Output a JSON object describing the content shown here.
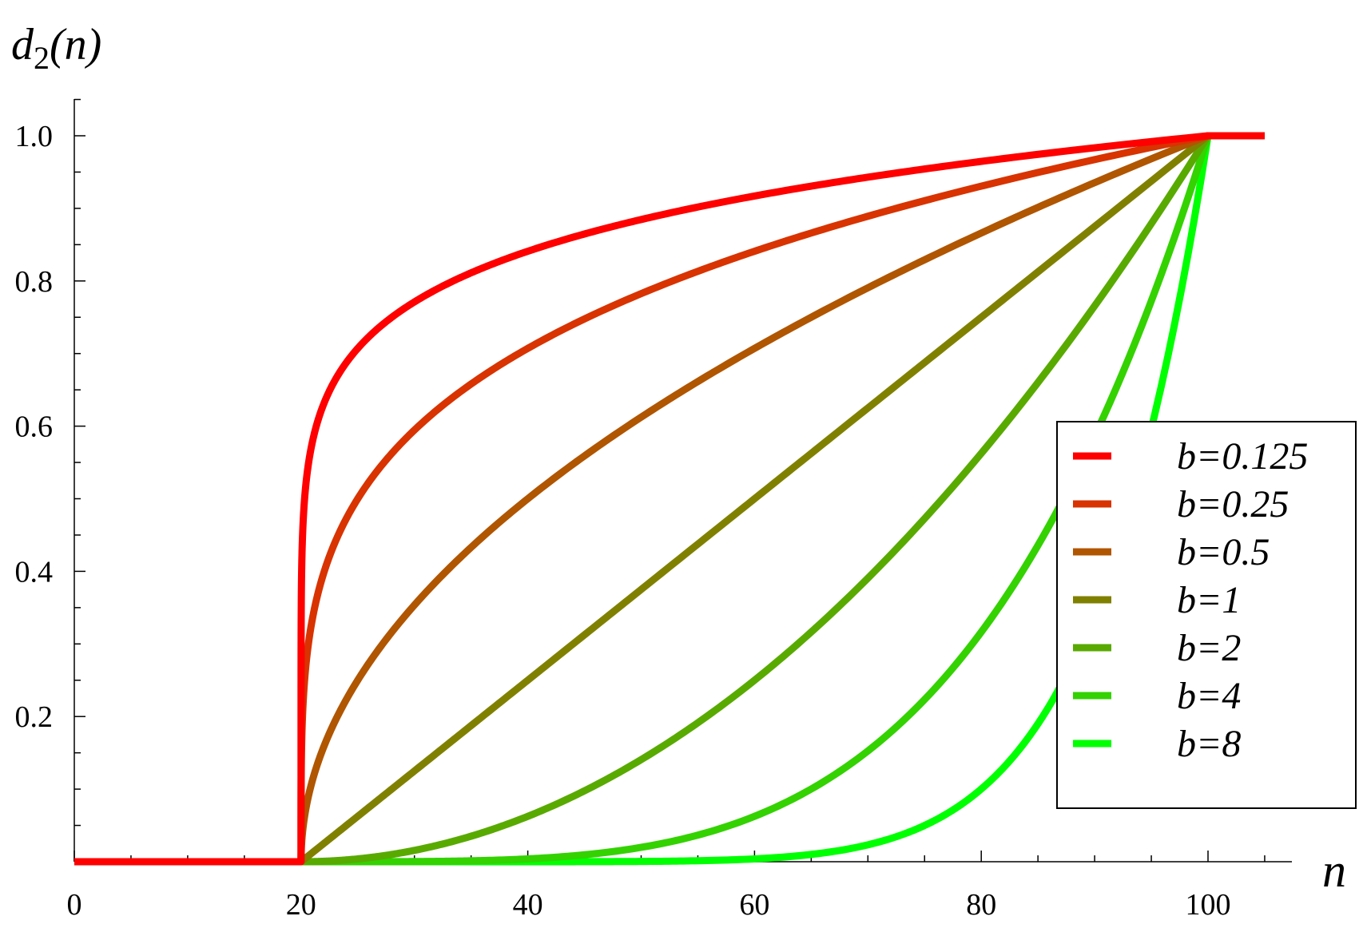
{
  "chart_data": {
    "type": "line",
    "title": "",
    "xlabel": "n",
    "ylabel_base": "d",
    "ylabel_sub": "2",
    "ylabel_arg": "(n)",
    "xlim": [
      0,
      106
    ],
    "ylim": [
      0,
      1.05
    ],
    "x_ticks": [
      0,
      20,
      40,
      60,
      80,
      100
    ],
    "x_tick_labels": [
      "0",
      "20",
      "40",
      "60",
      "80",
      "100"
    ],
    "y_ticks": [
      0.2,
      0.4,
      0.6,
      0.8,
      1.0
    ],
    "y_tick_labels": [
      "0.2",
      "0.4",
      "0.6",
      "0.8",
      "1.0"
    ],
    "grid": false,
    "legend_position": "right",
    "n_start": 20,
    "n_end": 100,
    "n_max": 105,
    "series": [
      {
        "name": "b=0.125",
        "b": 0.125,
        "color": "#ff0000"
      },
      {
        "name": "b=0.25",
        "b": 0.25,
        "color": "#d83300"
      },
      {
        "name": "b=0.5",
        "b": 0.5,
        "color": "#b05500"
      },
      {
        "name": "b=1",
        "b": 1,
        "color": "#808000"
      },
      {
        "name": "b=2",
        "b": 2,
        "color": "#58aa00"
      },
      {
        "name": "b=4",
        "b": 4,
        "color": "#33d200"
      },
      {
        "name": "b=8",
        "b": 8,
        "color": "#00ff00"
      }
    ]
  }
}
